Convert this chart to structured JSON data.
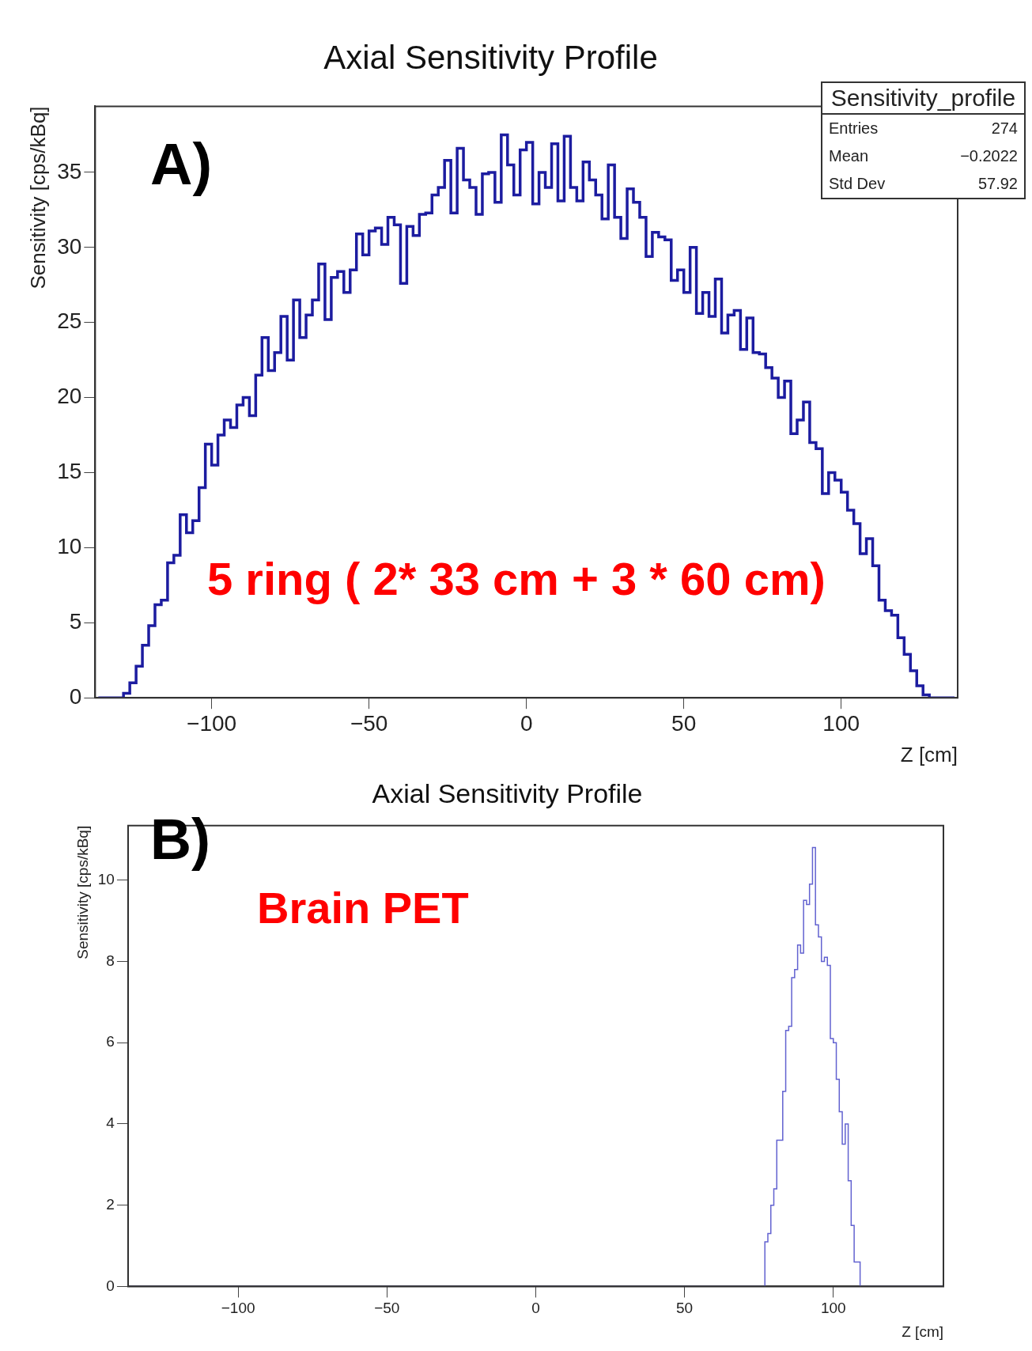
{
  "chart_data": [
    {
      "type": "histogram",
      "title": "Axial Sensitivity Profile",
      "xlabel": "Z [cm]",
      "ylabel": "Sensitivity [cps/kBq]",
      "color": "#1c1ca0",
      "bins": [
        -136,
        -134,
        -132,
        -130,
        -128,
        -126,
        -124,
        -122,
        -120,
        -118,
        -116,
        -114,
        -112,
        -110,
        -108,
        -106,
        -104,
        -102,
        -100,
        -98,
        -96,
        -94,
        -92,
        -90,
        -88,
        -86,
        -84,
        -82,
        -80,
        -78,
        -76,
        -74,
        -72,
        -70,
        -68,
        -66,
        -64,
        -62,
        -60,
        -58,
        -56,
        -54,
        -52,
        -50,
        -48,
        -46,
        -44,
        -42,
        -40,
        -38,
        -36,
        -34,
        -32,
        -30,
        -28,
        -26,
        -24,
        -22,
        -20,
        -18,
        -16,
        -14,
        -12,
        -10,
        -8,
        -6,
        -4,
        -2,
        0,
        2,
        4,
        6,
        8,
        10,
        12,
        14,
        16,
        18,
        20,
        22,
        24,
        26,
        28,
        30,
        32,
        34,
        36,
        38,
        40,
        42,
        44,
        46,
        48,
        50,
        52,
        54,
        56,
        58,
        60,
        62,
        64,
        66,
        68,
        70,
        72,
        74,
        76,
        78,
        80,
        82,
        84,
        86,
        88,
        90,
        92,
        94,
        96,
        98,
        100,
        102,
        104,
        106,
        108,
        110,
        112,
        114,
        116,
        118,
        120,
        122,
        124,
        126,
        128,
        130,
        132,
        134,
        136
      ],
      "values": [
        0,
        0,
        0,
        0,
        0.3,
        1.0,
        2.1,
        3.5,
        4.8,
        6.2,
        6.5,
        9.0,
        9.5,
        12.2,
        11.0,
        11.8,
        14.0,
        16.9,
        15.5,
        17.5,
        18.5,
        18.0,
        19.5,
        20.0,
        18.8,
        21.5,
        24.0,
        21.8,
        23.0,
        25.4,
        22.5,
        26.5,
        24.0,
        25.5,
        26.5,
        28.9,
        25.2,
        28.0,
        28.4,
        27.0,
        28.5,
        30.9,
        29.5,
        31.1,
        31.3,
        30.2,
        32.0,
        31.5,
        27.6,
        31.4,
        30.8,
        32.2,
        32.3,
        33.5,
        34.0,
        35.8,
        32.3,
        36.6,
        34.5,
        34.0,
        32.2,
        34.9,
        35.0,
        33.0,
        37.5,
        35.5,
        33.5,
        36.5,
        37.0,
        32.9,
        35.0,
        34.0,
        36.9,
        33.1,
        37.4,
        34.0,
        33.1,
        35.7,
        34.5,
        33.5,
        31.9,
        35.5,
        32.0,
        30.6,
        33.9,
        33.0,
        32.0,
        29.4,
        31.0,
        30.7,
        30.5,
        27.8,
        28.5,
        27.0,
        30.0,
        25.6,
        27.0,
        25.4,
        27.9,
        24.3,
        25.5,
        25.8,
        23.2,
        25.3,
        23.0,
        22.9,
        22.0,
        21.3,
        20.0,
        21.1,
        17.6,
        18.5,
        19.7,
        17.0,
        16.6,
        13.6,
        15.0,
        14.5,
        13.7,
        12.5,
        11.6,
        9.6,
        10.6,
        8.8,
        6.5,
        5.8,
        5.5,
        4.0,
        2.9,
        1.8,
        0.8,
        0.2,
        0,
        0,
        0,
        0
      ],
      "xlim": [
        -137,
        137
      ],
      "xticks": [
        -100,
        -50,
        0,
        50,
        100
      ],
      "ylim": [
        0,
        39.4
      ],
      "yticks": [
        0,
        5,
        10,
        15,
        20,
        25,
        30,
        35
      ],
      "grid": false,
      "legend": false,
      "annotations": [
        "A)",
        "5 ring ( 2* 33 cm + 3 * 60 cm)",
        "Sensitivity_profile",
        "Entries",
        "274",
        "Mean",
        "−0.2022",
        "Std Dev",
        "57.92"
      ]
    },
    {
      "type": "histogram",
      "title": "Axial Sensitivity Profile",
      "xlabel": "Z [cm]",
      "ylabel": "Sensitivity [cps/kBq]",
      "color": "#6262d0",
      "bins": [
        -137,
        77,
        78,
        79,
        80,
        81,
        82,
        83,
        84,
        85,
        86,
        87,
        88,
        89,
        90,
        91,
        92,
        93,
        94,
        95,
        96,
        97,
        98,
        99,
        100,
        101,
        102,
        103,
        104,
        105,
        106,
        107,
        108,
        109,
        137
      ],
      "values": [
        0,
        1.1,
        1.3,
        2.0,
        2.4,
        3.6,
        3.6,
        4.8,
        6.3,
        6.4,
        7.6,
        7.8,
        8.4,
        8.2,
        9.5,
        9.4,
        9.9,
        10.8,
        8.9,
        8.6,
        8.0,
        8.1,
        7.9,
        6.1,
        6.0,
        5.1,
        4.3,
        3.5,
        4.0,
        2.6,
        1.5,
        0.6,
        0.6,
        0
      ],
      "xlim": [
        -137,
        137
      ],
      "xticks": [
        -100,
        -50,
        0,
        50,
        100
      ],
      "ylim": [
        0,
        11.34
      ],
      "yticks": [
        0,
        2,
        4,
        6,
        8,
        10
      ],
      "grid": false,
      "legend": false,
      "annotations": [
        "B)",
        "Brain PET"
      ]
    }
  ]
}
